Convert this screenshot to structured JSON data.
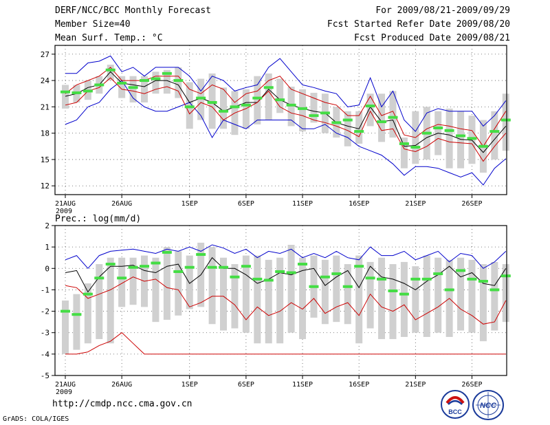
{
  "header": {
    "title": "DERF/NCC/BCC Monthly Forecast",
    "member_size": "Member Size=40",
    "variable": "Mean Surf. Temp.: °C",
    "period": "For 2009/08/21-2009/09/29",
    "started": "Fcst Started Refer Date 2009/08/20",
    "produced": "Fcst Produced Date 2009/08/21"
  },
  "footer": {
    "url": "http://cmdp.ncc.cma.gov.cn",
    "grads": "GrADS: COLA/IGES",
    "logo_bcc": "BCC",
    "logo_ncc": "NCC"
  },
  "colors": {
    "max_line": "#0000cc",
    "percentile_line": "#cc0000",
    "mean_line": "#000000",
    "box": "#d0d0d0",
    "median_bar": "#44dd44"
  },
  "chart_data": [
    {
      "type": "line",
      "title": "Mean Surf. Temp.: °C",
      "x_tick_labels": [
        "21AUG",
        "26AUG",
        "1SEP",
        "6SEP",
        "11SEP",
        "16SEP",
        "21SEP",
        "26SEP"
      ],
      "x_tick_days": [
        0,
        5,
        11,
        16,
        21,
        26,
        31,
        36
      ],
      "year_label": "2009",
      "ylim": [
        11,
        28
      ],
      "y_ticks": [
        12,
        15,
        18,
        21,
        24,
        27
      ],
      "grid": true,
      "days": 40,
      "series": [
        {
          "name": "max",
          "values": [
            19,
            19.5,
            21,
            21.5,
            23,
            24,
            22,
            21,
            20.5,
            20.5,
            21,
            21.5,
            20,
            17.5,
            19.5,
            19,
            18.5,
            19.5,
            19.5,
            19.5,
            19.5,
            18.5,
            18.5,
            19,
            18,
            17.5,
            16.5,
            16,
            15.5,
            14.5,
            13.2,
            14.2,
            14.2,
            14,
            13.5,
            13,
            13.5,
            12.1,
            14,
            15.1
          ]
        },
        {
          "name": "p90",
          "values": [
            24.8,
            24.8,
            26,
            26.2,
            26.8,
            25,
            25.5,
            24.5,
            25.5,
            25.5,
            25.5,
            24.5,
            22.8,
            24.5,
            24,
            22.8,
            23.2,
            23.5,
            25.5,
            26.5,
            25,
            23.5,
            23.2,
            22.8,
            22.5,
            21,
            21.2,
            24.3,
            21,
            22.8,
            19.5,
            18.2,
            20.3,
            20.8,
            20.5,
            20.5,
            20.5,
            18.8,
            20,
            21.7
          ]
        },
        {
          "name": "p75",
          "values": [
            22.5,
            23.5,
            24,
            24.5,
            25.5,
            24,
            24,
            24,
            24.5,
            24.5,
            24.5,
            23,
            22.5,
            23.5,
            23,
            21.5,
            22.5,
            22.8,
            24,
            24.5,
            23,
            22.5,
            22,
            21.5,
            21.2,
            20,
            20,
            22.2,
            20,
            20.5,
            17.8,
            17.5,
            18.5,
            19,
            18.8,
            18.5,
            18.3,
            16.5,
            18.5,
            20.5
          ]
        },
        {
          "name": "mean",
          "values": [
            22.2,
            22.5,
            23.2,
            23.5,
            25,
            23.7,
            23.5,
            23.3,
            24,
            24,
            23.5,
            21.5,
            22,
            21.5,
            20.5,
            21,
            21.5,
            21.5,
            23,
            21.8,
            21.2,
            20.8,
            20.5,
            20.3,
            19.2,
            18.8,
            18.5,
            21,
            19.3,
            19.5,
            16.5,
            16.6,
            17.5,
            18,
            17.8,
            17.3,
            17.2,
            15.8,
            17.3,
            18.8
          ]
        },
        {
          "name": "p25",
          "values": [
            21.2,
            21.5,
            22.8,
            23.2,
            24.3,
            23,
            22.8,
            22.5,
            23,
            23.3,
            22.8,
            20.2,
            21.5,
            21,
            19.5,
            20.3,
            20.8,
            21.5,
            22.8,
            21,
            20.3,
            20,
            19.5,
            19.2,
            18.8,
            18.3,
            17.6,
            20.5,
            18.3,
            18.5,
            16.2,
            15.9,
            16.5,
            17.4,
            17,
            16.9,
            16.8,
            14.8,
            16.5,
            18
          ]
        },
        {
          "name": "median_bar",
          "values": [
            22.7,
            22.6,
            22.8,
            23.5,
            25.2,
            23.7,
            23.2,
            24,
            24.2,
            24.8,
            24,
            21,
            22,
            21.5,
            20.5,
            21,
            21.2,
            22,
            23.2,
            21.8,
            21.2,
            20.8,
            20,
            20.3,
            19.2,
            19.5,
            18.2,
            21.1,
            19.3,
            19.8,
            16.8,
            16.4,
            18,
            18.6,
            18.3,
            17.7,
            17.4,
            16.5,
            18.2,
            19.5
          ]
        },
        {
          "name": "box_high",
          "values": [
            23.5,
            23.5,
            24,
            24.5,
            25.8,
            24.5,
            24.5,
            24.5,
            25,
            25.2,
            25.5,
            23.8,
            24.2,
            24.8,
            23.2,
            22.8,
            23,
            24.5,
            24.8,
            24.2,
            23.3,
            23,
            22.6,
            22.5,
            21,
            20.5,
            20.5,
            22.5,
            22.5,
            22.8,
            17.5,
            20.5,
            21,
            20.5,
            20.8,
            20.5,
            20,
            19.5,
            20.5,
            22.5
          ]
        },
        {
          "name": "box_low",
          "values": [
            20.8,
            21.5,
            21.8,
            22.5,
            24,
            22,
            21.5,
            21.5,
            22.5,
            22.5,
            22,
            18.5,
            19.5,
            18.5,
            18.5,
            17.8,
            18.5,
            19,
            19.5,
            20.3,
            18.8,
            18.2,
            19.2,
            18,
            17.5,
            16.5,
            16.8,
            18.8,
            17,
            17.5,
            14,
            14.5,
            15,
            15.5,
            14,
            14,
            14.5,
            13.5,
            15,
            16
          ]
        }
      ]
    },
    {
      "type": "line",
      "title": "Prec.: log(mm/d)",
      "x_tick_labels": [
        "21AUG",
        "26AUG",
        "1SEP",
        "6SEP",
        "11SEP",
        "16SEP",
        "21SEP",
        "26SEP"
      ],
      "x_tick_days": [
        0,
        5,
        11,
        16,
        21,
        26,
        31,
        36
      ],
      "year_label": "2009",
      "ylim": [
        -5,
        2
      ],
      "y_ticks": [
        -5,
        -4,
        -3,
        -2,
        -1,
        0,
        1,
        2
      ],
      "grid": true,
      "days": 40,
      "series": [
        {
          "name": "max",
          "values": [
            0.4,
            0.6,
            0,
            0.6,
            0.8,
            0.85,
            0.9,
            0.8,
            0.7,
            0.9,
            0.8,
            1,
            0.8,
            1.1,
            0.95,
            0.7,
            0.9,
            0.5,
            0.8,
            0.7,
            0.9,
            0.5,
            0.7,
            0.5,
            0.8,
            0.5,
            0.4,
            1,
            0.6,
            0.6,
            0.8,
            0.4,
            0.6,
            0.8,
            0.3,
            0.7,
            0.6,
            0,
            0.3,
            0.8
          ]
        },
        {
          "name": "mean",
          "values": [
            -0.2,
            -0.1,
            -1.1,
            -0.4,
            0.1,
            0.1,
            0.15,
            -0.1,
            -0.2,
            0.1,
            0.2,
            -0.7,
            -0.3,
            0.5,
            0,
            0,
            -0.3,
            -0.7,
            -0.5,
            -0.2,
            -0.3,
            -0.1,
            0,
            -0.8,
            -0.4,
            -0.1,
            -0.9,
            0.1,
            -0.4,
            -0.5,
            -0.7,
            -1,
            -0.6,
            -0.3,
            0.1,
            -0.4,
            -0.2,
            -0.7,
            -0.8,
            0
          ]
        },
        {
          "name": "p10",
          "values": [
            -0.8,
            -0.9,
            -1.4,
            -1.2,
            -1,
            -0.7,
            -0.4,
            -0.6,
            -0.5,
            -0.9,
            -1,
            -1.8,
            -1.6,
            -1.3,
            -1.3,
            -1.7,
            -2.4,
            -1.8,
            -2.2,
            -2,
            -1.6,
            -1.9,
            -1.4,
            -2.1,
            -1.8,
            -1.6,
            -2.2,
            -1.2,
            -1.8,
            -2,
            -1.7,
            -2.4,
            -2.1,
            -1.8,
            -1.4,
            -1.9,
            -2.2,
            -2.6,
            -2.5,
            -1.5
          ]
        },
        {
          "name": "p01",
          "values": [
            -4,
            -4,
            -3.9,
            -3.6,
            -3.4,
            -3,
            -3.5,
            -4,
            -4,
            -4,
            -4,
            -4,
            -4,
            -4,
            -4,
            -4,
            -4,
            -4,
            -4,
            -4,
            -4,
            -4,
            -4,
            -4,
            -4,
            -4,
            -4,
            -4,
            -4,
            -4,
            -4,
            -4,
            -4,
            -4,
            -4,
            -4,
            -4,
            -4,
            -4,
            -4
          ]
        },
        {
          "name": "median_bar",
          "values": [
            -2,
            -2.15,
            -1.2,
            -0.45,
            0.2,
            -0.45,
            0.05,
            0.1,
            0.25,
            0.75,
            -0.15,
            0.05,
            0.65,
            0.05,
            0.05,
            -0.4,
            0.1,
            -0.5,
            -0.55,
            -0.15,
            -0.2,
            0.2,
            -0.85,
            -0.4,
            -0.25,
            -0.85,
            0.1,
            -0.45,
            -0.5,
            -1.05,
            -1.2,
            -0.5,
            -0.5,
            -0.25,
            -1,
            -0.1,
            -0.5,
            -0.6,
            -1,
            -0.35
          ]
        },
        {
          "name": "box_high",
          "values": [
            -1.5,
            -1.2,
            -0.7,
            0.2,
            0.5,
            0.5,
            0.5,
            0.6,
            0.5,
            1,
            0.8,
            0.6,
            1.2,
            1,
            0.5,
            0.2,
            0.6,
            0.6,
            0.4,
            0.5,
            1.1,
            0.5,
            0.6,
            0.4,
            0.6,
            0.2,
            0.6,
            0.3,
            0.5,
            0.2,
            0.3,
            0.1,
            0.6,
            0.5,
            0.4,
            0.5,
            0.4,
            0.2,
            0.3,
            0.2
          ]
        },
        {
          "name": "box_low",
          "values": [
            -4,
            -3.8,
            -3.5,
            -3.3,
            -3.5,
            -1.8,
            -1.7,
            -1.8,
            -2.5,
            -2.4,
            -2.2,
            -1.9,
            -1.8,
            -2.6,
            -2.9,
            -2.8,
            -3,
            -3.5,
            -3.5,
            -3.5,
            -3,
            -3.3,
            -2.3,
            -2.6,
            -2.5,
            -2.6,
            -3.5,
            -2.8,
            -3.3,
            -3.3,
            -3.2,
            -3,
            -3.2,
            -3,
            -3.2,
            -2.9,
            -3,
            -3.4,
            -2.9,
            -2.5
          ]
        }
      ]
    }
  ]
}
